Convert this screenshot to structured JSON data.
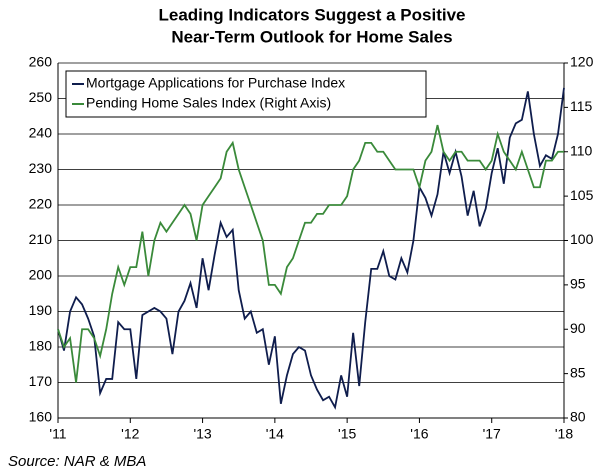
{
  "chart_data": {
    "type": "line",
    "title": [
      "Leading Indicators Suggest a Positive",
      "Near-Term Outlook for Home Sales"
    ],
    "source": "Source: NAR & MBA",
    "x": [
      2011,
      2011.083,
      2011.167,
      2011.25,
      2011.333,
      2011.417,
      2011.5,
      2011.583,
      2011.667,
      2011.75,
      2011.833,
      2011.917,
      2012,
      2012.083,
      2012.167,
      2012.25,
      2012.333,
      2012.417,
      2012.5,
      2012.583,
      2012.667,
      2012.75,
      2012.833,
      2012.917,
      2013,
      2013.083,
      2013.167,
      2013.25,
      2013.333,
      2013.417,
      2013.5,
      2013.583,
      2013.667,
      2013.75,
      2013.833,
      2013.917,
      2014,
      2014.083,
      2014.167,
      2014.25,
      2014.333,
      2014.417,
      2014.5,
      2014.583,
      2014.667,
      2014.75,
      2014.833,
      2014.917,
      2015,
      2015.083,
      2015.167,
      2015.25,
      2015.333,
      2015.417,
      2015.5,
      2015.583,
      2015.667,
      2015.75,
      2015.833,
      2015.917,
      2016,
      2016.083,
      2016.167,
      2016.25,
      2016.333,
      2016.417,
      2016.5,
      2016.583,
      2016.667,
      2016.75,
      2016.833,
      2016.917,
      2017,
      2017.083,
      2017.167,
      2017.25,
      2017.333,
      2017.417,
      2017.5,
      2017.583,
      2017.667,
      2017.75,
      2017.833,
      2017.917,
      2018
    ],
    "series": [
      {
        "name": "Mortgage Applications for Purchase Index",
        "color": "#0f1d4d",
        "values": [
          185,
          179,
          190,
          194,
          192,
          188,
          183,
          167,
          171,
          171,
          187,
          185,
          185,
          171,
          189,
          190,
          191,
          190,
          188,
          178,
          190,
          193,
          198,
          191,
          205,
          196,
          206,
          215,
          211,
          213,
          196,
          188,
          190,
          184,
          185,
          175,
          183,
          164,
          172,
          178,
          180,
          179,
          172,
          168,
          165,
          166,
          163,
          172,
          166,
          184,
          169,
          187,
          202,
          202,
          207,
          200,
          199,
          205,
          201,
          210,
          225,
          222,
          217,
          223,
          235,
          229,
          235,
          228,
          217,
          224,
          214,
          219,
          229,
          236,
          226,
          239,
          243,
          244,
          252,
          240,
          231,
          234,
          233,
          240,
          253
        ]
      },
      {
        "name": "Pending Home Sales Index (Right Axis)",
        "color": "#3a8a3a",
        "axis": "y2",
        "values": [
          90,
          88,
          89,
          84,
          90,
          90,
          89,
          87,
          90,
          94,
          97,
          95,
          97,
          97,
          101,
          96,
          100,
          102,
          101,
          102,
          103,
          104,
          103,
          100,
          104,
          105,
          106,
          107,
          110,
          111,
          108,
          106,
          104,
          102,
          100,
          95,
          95,
          94,
          97,
          98,
          100,
          102,
          102,
          103,
          103,
          104,
          104,
          104,
          105,
          108,
          109,
          111,
          111,
          110,
          110,
          109,
          108,
          108,
          108,
          108,
          106,
          109,
          110,
          113,
          110,
          109,
          110,
          110,
          109,
          109,
          109,
          108,
          109,
          112,
          110,
          109,
          108,
          110,
          108,
          106,
          106,
          109,
          109,
          110,
          110
        ]
      }
    ],
    "xlim": [
      2011,
      2018
    ],
    "xticks": [
      {
        "value": 2011,
        "label": "'11"
      },
      {
        "value": 2012,
        "label": "'12"
      },
      {
        "value": 2013,
        "label": "'13"
      },
      {
        "value": 2014,
        "label": "'14"
      },
      {
        "value": 2015,
        "label": "'15"
      },
      {
        "value": 2016,
        "label": "'16"
      },
      {
        "value": 2017,
        "label": "'17"
      },
      {
        "value": 2018,
        "label": "'18"
      }
    ],
    "ylim": [
      160,
      260
    ],
    "yticks": [
      160,
      170,
      180,
      190,
      200,
      210,
      220,
      230,
      240,
      250,
      260
    ],
    "y2lim": [
      80,
      120
    ],
    "y2ticks": [
      80,
      85,
      90,
      95,
      100,
      105,
      110,
      115,
      120
    ],
    "grid": true,
    "legend": "upper left"
  }
}
